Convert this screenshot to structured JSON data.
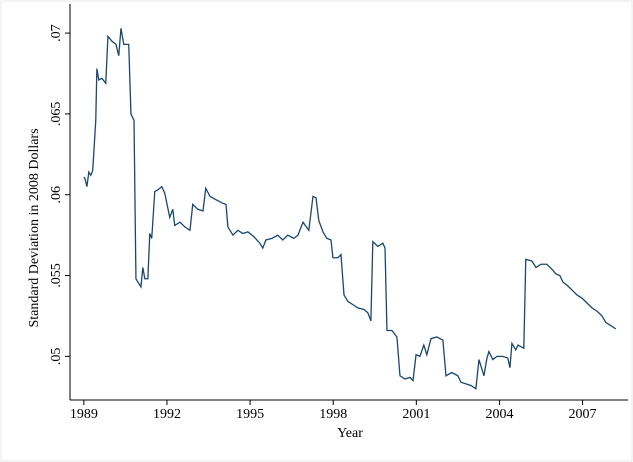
{
  "chart_data": {
    "type": "line",
    "x_label": "Year",
    "y_label": "Standard Deviation in 2008 Dollars",
    "color": "#1a476f",
    "x": [
      1989.0,
      1989.04,
      1989.11,
      1989.18,
      1989.25,
      1989.32,
      1989.43,
      1989.47,
      1989.54,
      1989.65,
      1989.79,
      1989.87,
      1990.01,
      1990.16,
      1990.26,
      1990.34,
      1990.44,
      1990.62,
      1990.7,
      1990.81,
      1990.88,
      1991.06,
      1991.13,
      1991.2,
      1991.31,
      1991.38,
      1991.45,
      1991.56,
      1991.67,
      1991.81,
      1991.92,
      1992.1,
      1992.21,
      1992.28,
      1992.47,
      1992.65,
      1992.83,
      1992.93,
      1993.11,
      1993.3,
      1993.4,
      1993.55,
      1993.76,
      1993.98,
      1994.13,
      1994.2,
      1994.38,
      1994.56,
      1994.74,
      1994.92,
      1995.14,
      1995.35,
      1995.46,
      1995.57,
      1995.79,
      1996.0,
      1996.18,
      1996.36,
      1996.58,
      1996.73,
      1996.91,
      1997.12,
      1997.27,
      1997.38,
      1997.48,
      1997.63,
      1997.77,
      1997.92,
      1997.99,
      1998.17,
      1998.28,
      1998.39,
      1998.53,
      1998.71,
      1998.89,
      1999.11,
      1999.25,
      1999.36,
      1999.43,
      1999.61,
      1999.79,
      1999.87,
      1999.94,
      2000.12,
      2000.3,
      2000.41,
      2000.59,
      2000.77,
      2000.88,
      2000.99,
      2001.13,
      2001.27,
      2001.38,
      2001.53,
      2001.74,
      2001.96,
      2002.07,
      2002.28,
      2002.5,
      2002.61,
      2002.79,
      2002.97,
      2003.15,
      2003.26,
      2003.44,
      2003.55,
      2003.62,
      2003.76,
      2003.91,
      2004.12,
      2004.3,
      2004.38,
      2004.45,
      2004.59,
      2004.67,
      2004.88,
      2004.95,
      2005.17,
      2005.32,
      2005.5,
      2005.71,
      2005.89,
      2006.04,
      2006.18,
      2006.29,
      2006.44,
      2006.62,
      2006.8,
      2006.98,
      2007.16,
      2007.34,
      2007.52,
      2007.7,
      2007.84,
      2008.02,
      2008.2
    ],
    "values": [
      0.0611,
      0.061,
      0.0605,
      0.0614,
      0.0612,
      0.0615,
      0.0646,
      0.0678,
      0.0671,
      0.0672,
      0.0669,
      0.0698,
      0.0695,
      0.0693,
      0.0686,
      0.0703,
      0.0693,
      0.0693,
      0.065,
      0.0646,
      0.0548,
      0.0543,
      0.0555,
      0.0548,
      0.0548,
      0.0576,
      0.0573,
      0.0602,
      0.0603,
      0.0605,
      0.0601,
      0.0586,
      0.0591,
      0.0581,
      0.0583,
      0.058,
      0.0578,
      0.0594,
      0.0591,
      0.059,
      0.0604,
      0.0599,
      0.0597,
      0.0595,
      0.0594,
      0.058,
      0.0575,
      0.0578,
      0.0576,
      0.0577,
      0.0574,
      0.057,
      0.0567,
      0.0572,
      0.0573,
      0.0575,
      0.0572,
      0.0575,
      0.0573,
      0.0575,
      0.0583,
      0.0578,
      0.0599,
      0.0598,
      0.0584,
      0.0577,
      0.0573,
      0.0572,
      0.0561,
      0.0561,
      0.0563,
      0.0538,
      0.0534,
      0.0532,
      0.053,
      0.0529,
      0.0527,
      0.0522,
      0.0571,
      0.0568,
      0.057,
      0.0567,
      0.0516,
      0.0516,
      0.0512,
      0.0488,
      0.0486,
      0.0487,
      0.0485,
      0.0501,
      0.05,
      0.0507,
      0.0501,
      0.0511,
      0.0512,
      0.051,
      0.0488,
      0.049,
      0.0488,
      0.0484,
      0.0483,
      0.0482,
      0.048,
      0.0498,
      0.0488,
      0.0499,
      0.0503,
      0.0498,
      0.05,
      0.05,
      0.0499,
      0.0493,
      0.0508,
      0.0504,
      0.0507,
      0.0505,
      0.056,
      0.0559,
      0.0555,
      0.0557,
      0.0557,
      0.0554,
      0.0551,
      0.055,
      0.0546,
      0.0544,
      0.0541,
      0.0538,
      0.0536,
      0.0533,
      0.053,
      0.0528,
      0.0525,
      0.0521,
      0.0519,
      0.0517
    ],
    "xlim": [
      1988.5,
      2008.64
    ],
    "ylim": [
      0.0473,
      0.0718
    ],
    "xticks": [
      1989,
      1992,
      1995,
      1998,
      2001,
      2004,
      2007
    ],
    "yticks": [
      {
        "value": 0.05,
        "label": ".05"
      },
      {
        "value": 0.055,
        "label": ".055"
      },
      {
        "value": 0.06,
        "label": ".06"
      },
      {
        "value": 0.065,
        "label": ".065"
      },
      {
        "value": 0.07,
        "label": ".07"
      }
    ]
  }
}
